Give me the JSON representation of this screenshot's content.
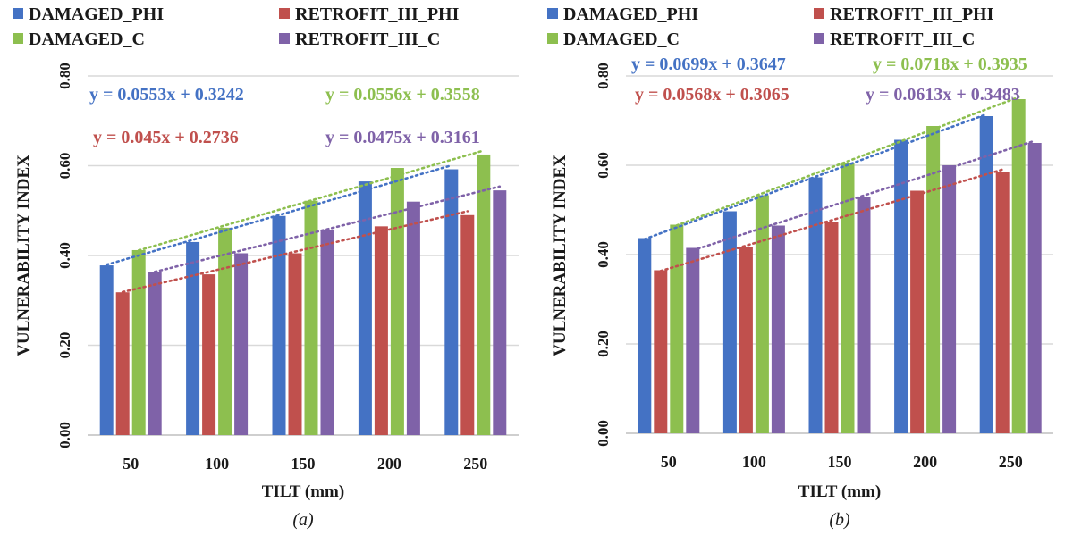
{
  "figure": {
    "captions": [
      "(a)",
      "(b)"
    ]
  },
  "chart_data": [
    {
      "type": "bar",
      "panel": "(a)",
      "xlabel": "TILT (mm)",
      "ylabel": "VULNERABILITY INDEX",
      "ylim": [
        0,
        0.8
      ],
      "yticks": [
        "0.00",
        "0.20",
        "0.40",
        "0.60",
        "0.80"
      ],
      "categories": [
        "50",
        "100",
        "150",
        "200",
        "250"
      ],
      "legend_position": "top",
      "grid": "horizontal",
      "series": [
        {
          "name": "DAMAGED_PHI",
          "color": "#4472C4",
          "values": [
            0.378,
            0.43,
            0.488,
            0.565,
            0.592
          ]
        },
        {
          "name": "RETROFIT_III_PHI",
          "color": "#C0504D",
          "values": [
            0.318,
            0.358,
            0.405,
            0.465,
            0.49
          ]
        },
        {
          "name": "DAMAGED_C",
          "color": "#8DBF4F",
          "values": [
            0.412,
            0.462,
            0.522,
            0.595,
            0.625
          ]
        },
        {
          "name": "RETROFIT_III_C",
          "color": "#7F62A8",
          "values": [
            0.363,
            0.405,
            0.457,
            0.52,
            0.545
          ]
        }
      ],
      "trendlines": [
        {
          "series": "DAMAGED_PHI",
          "equation": "y = 0.0553x + 0.3242",
          "slope": 0.0553,
          "intercept": 0.3242,
          "color": "#4472C4"
        },
        {
          "series": "RETROFIT_III_PHI",
          "equation": "y = 0.045x + 0.2736",
          "slope": 0.045,
          "intercept": 0.2736,
          "color": "#C0504D"
        },
        {
          "series": "DAMAGED_C",
          "equation": "y = 0.0556x + 0.3558",
          "slope": 0.0556,
          "intercept": 0.3558,
          "color": "#8DBF4F"
        },
        {
          "series": "RETROFIT_III_C",
          "equation": "y = 0.0475x + 0.3161",
          "slope": 0.0475,
          "intercept": 0.3161,
          "color": "#7F62A8"
        }
      ]
    },
    {
      "type": "bar",
      "panel": "(b)",
      "xlabel": "TILT (mm)",
      "ylabel": "VULNERABILITY INDEX",
      "ylim": [
        0,
        0.8
      ],
      "yticks": [
        "0.00",
        "0.20",
        "0.40",
        "0.60",
        "0.80"
      ],
      "categories": [
        "50",
        "100",
        "150",
        "200",
        "250"
      ],
      "legend_position": "top",
      "grid": "horizontal",
      "series": [
        {
          "name": "DAMAGED_PHI",
          "color": "#4472C4",
          "values": [
            0.437,
            0.497,
            0.573,
            0.657,
            0.71
          ]
        },
        {
          "name": "RETROFIT_III_PHI",
          "color": "#C0504D",
          "values": [
            0.365,
            0.417,
            0.472,
            0.543,
            0.585
          ]
        },
        {
          "name": "DAMAGED_C",
          "color": "#8DBF4F",
          "values": [
            0.467,
            0.533,
            0.605,
            0.688,
            0.748
          ]
        },
        {
          "name": "RETROFIT_III_C",
          "color": "#7F62A8",
          "values": [
            0.415,
            0.465,
            0.53,
            0.6,
            0.65
          ]
        }
      ],
      "trendlines": [
        {
          "series": "DAMAGED_PHI",
          "equation": "y = 0.0699x + 0.3647",
          "slope": 0.0699,
          "intercept": 0.3647,
          "color": "#4472C4"
        },
        {
          "series": "RETROFIT_III_PHI",
          "equation": "y = 0.0568x + 0.3065",
          "slope": 0.0568,
          "intercept": 0.3065,
          "color": "#C0504D"
        },
        {
          "series": "DAMAGED_C",
          "equation": "y = 0.0718x + 0.3935",
          "slope": 0.0718,
          "intercept": 0.3935,
          "color": "#8DBF4F"
        },
        {
          "series": "RETROFIT_III_C",
          "equation": "y = 0.0613x + 0.3483",
          "slope": 0.0613,
          "intercept": 0.3483,
          "color": "#7F62A8"
        }
      ]
    }
  ]
}
